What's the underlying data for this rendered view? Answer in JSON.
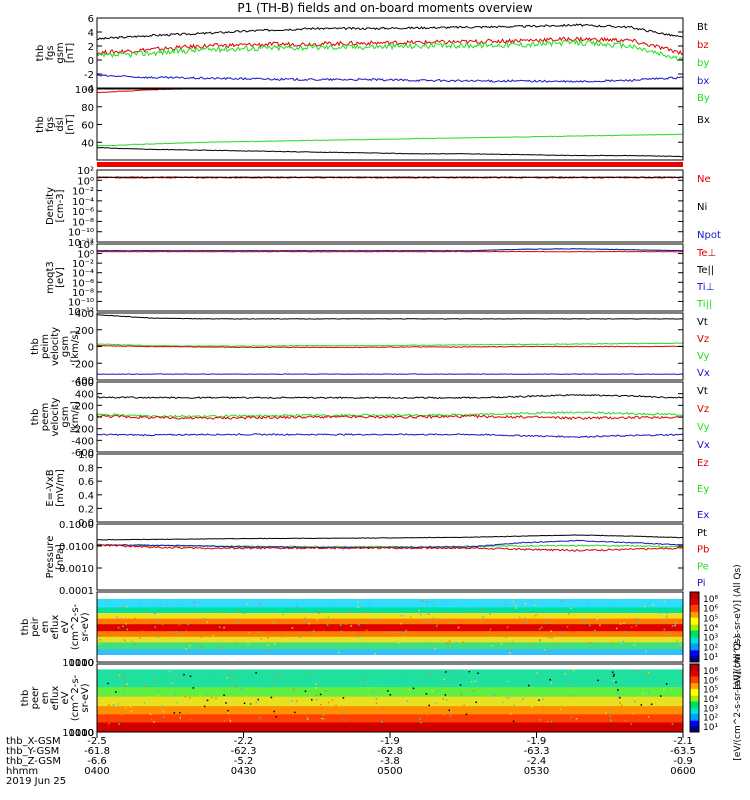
{
  "title": "P1  (TH-B) fields and on-board moments overview",
  "colors": {
    "black": "#000000",
    "red": "#e00000",
    "green": "#22dd22",
    "blue": "#1515c8",
    "frame": "#000000"
  },
  "chart_data": [
    {
      "type": "line",
      "panel": "fgs_gsm",
      "ylabel": [
        "thb",
        "fgs",
        "gsm",
        "[nT]"
      ],
      "ylim": [
        -4,
        6
      ],
      "yticks": [
        "6",
        "4",
        "2",
        "0",
        "-2",
        "-4"
      ],
      "ytick_values": [
        6,
        4,
        2,
        0,
        -2,
        -4
      ],
      "legend": [
        {
          "label": "Bt",
          "color": "#000000"
        },
        {
          "label": "bz",
          "color": "#e00000"
        },
        {
          "label": "by",
          "color": "#22dd22"
        },
        {
          "label": "bx",
          "color": "#1515c8"
        }
      ],
      "series": [
        {
          "name": "Bt",
          "color": "#000000",
          "base": [
            3.0,
            3.5,
            3.8,
            4.2,
            4.5,
            4.5,
            4.6,
            4.7,
            4.8,
            5.0,
            4.7,
            3.2
          ],
          "noise": 0.15
        },
        {
          "name": "bz",
          "color": "#e00000",
          "base": [
            1.0,
            1.5,
            2.0,
            2.2,
            2.3,
            2.4,
            2.5,
            2.6,
            2.8,
            3.0,
            2.8,
            1.0
          ],
          "noise": 0.3
        },
        {
          "name": "by",
          "color": "#22dd22",
          "base": [
            0.5,
            1.0,
            1.5,
            1.7,
            1.8,
            1.9,
            2.0,
            2.1,
            2.2,
            2.5,
            2.0,
            0.0
          ],
          "noise": 0.4
        },
        {
          "name": "bx",
          "color": "#1515c8",
          "base": [
            -2.2,
            -2.5,
            -2.6,
            -2.7,
            -2.8,
            -2.8,
            -2.9,
            -3.0,
            -3.0,
            -3.1,
            -2.9,
            -2.5
          ],
          "noise": 0.15
        }
      ]
    },
    {
      "type": "line",
      "panel": "fgs_dsl",
      "ylabel": [
        "thb",
        "fgs",
        "dsl",
        "[nT]"
      ],
      "ylim": [
        20,
        100
      ],
      "yticks": [
        "100",
        "80",
        "60",
        "40"
      ],
      "ytick_values": [
        100,
        80,
        60,
        40
      ],
      "legend": [
        {
          "label": "By",
          "color": "#22dd22"
        },
        {
          "label": "Bx",
          "color": "#000000"
        }
      ],
      "series": [
        {
          "name": "Bz",
          "color": "#e00000",
          "base": [
            96,
            99,
            101,
            102,
            103,
            103,
            104,
            104,
            104,
            105,
            105,
            105
          ],
          "noise": 0.4
        },
        {
          "name": "By",
          "color": "#22dd22",
          "base": [
            36,
            38,
            40,
            41,
            42,
            43,
            44,
            45,
            46,
            47,
            48,
            49
          ],
          "noise": 0.3
        },
        {
          "name": "Bx",
          "color": "#000000",
          "base": [
            34,
            32,
            31,
            30,
            29,
            28,
            27,
            27,
            26,
            25,
            25,
            24
          ],
          "noise": 0.3
        }
      ]
    },
    {
      "type": "line",
      "panel": "density",
      "ylabel": [
        "Density",
        "[cm-3]"
      ],
      "ylim": [
        -12,
        2
      ],
      "log": true,
      "yticks": [
        "10²",
        "10⁰",
        "10⁻²",
        "10⁻⁴",
        "10⁻⁶",
        "10⁻⁸",
        "10⁻¹⁰",
        "10⁻¹²"
      ],
      "ytick_values": [
        2,
        0,
        -2,
        -4,
        -6,
        -8,
        -10,
        -12
      ],
      "legend": [
        {
          "label": "Ne",
          "color": "#e00000"
        },
        {
          "label": "Ni",
          "color": "#000000"
        },
        {
          "label": "Npot",
          "color": "#1515c8"
        }
      ],
      "series": [
        {
          "name": "Ne",
          "color": "#e00000",
          "base": [
            0.5,
            0.5,
            0.5,
            0.5,
            0.5,
            0.5,
            0.5,
            0.5,
            0.5,
            0.5,
            0.5,
            0.5
          ],
          "noise": 0.08
        },
        {
          "name": "Ni",
          "color": "#000000",
          "base": [
            0.6,
            0.6,
            0.6,
            0.6,
            0.6,
            0.6,
            0.6,
            0.6,
            0.6,
            0.6,
            0.6,
            0.6
          ],
          "noise": 0.05
        }
      ]
    },
    {
      "type": "line",
      "panel": "temperature",
      "ylabel": [
        "moqt3",
        "[eV]"
      ],
      "ylim": [
        -12,
        2
      ],
      "log": true,
      "yticks": [
        "10²",
        "10⁰",
        "10⁻²",
        "10⁻⁴",
        "10⁻⁶",
        "10⁻⁸",
        "10⁻¹⁰",
        "10⁻¹²"
      ],
      "ytick_values": [
        2,
        0,
        -2,
        -4,
        -6,
        -8,
        -10,
        -12
      ],
      "legend": [
        {
          "label": "Te⊥",
          "color": "#e00000"
        },
        {
          "label": "Te||",
          "color": "#000000"
        },
        {
          "label": "Ti⊥",
          "color": "#1515c8"
        },
        {
          "label": "Ti||",
          "color": "#22dd22"
        }
      ],
      "series": [
        {
          "name": "Ti||",
          "color": "#22dd22",
          "base": [
            0.6,
            0.6,
            0.6,
            0.6,
            0.6,
            0.6,
            0.6,
            0.6,
            0.9,
            1.0,
            0.8,
            0.6
          ],
          "noise": 0.05
        },
        {
          "name": "Ti⊥",
          "color": "#1515c8",
          "base": [
            0.6,
            0.6,
            0.6,
            0.6,
            0.6,
            0.6,
            0.6,
            0.6,
            0.9,
            1.0,
            0.8,
            0.6
          ],
          "noise": 0.05
        },
        {
          "name": "Te⊥",
          "color": "#e00000",
          "base": [
            0.4,
            0.4,
            0.4,
            0.4,
            0.4,
            0.4,
            0.4,
            0.4,
            0.4,
            0.4,
            0.4,
            0.4
          ],
          "noise": 0.05
        }
      ]
    },
    {
      "type": "line",
      "panel": "ion_velocity",
      "ylabel": [
        "thb",
        "peim",
        "velocity",
        "gsm",
        "[km/s]"
      ],
      "ylim": [
        -400,
        400
      ],
      "yticks": [
        "400",
        "200",
        "0",
        "-200",
        "-400"
      ],
      "ytick_values": [
        400,
        200,
        0,
        -200,
        -400
      ],
      "legend": [
        {
          "label": "Vt",
          "color": "#000000"
        },
        {
          "label": "Vz",
          "color": "#e00000"
        },
        {
          "label": "Vy",
          "color": "#22dd22"
        },
        {
          "label": "Vx",
          "color": "#1515c8"
        }
      ],
      "series": [
        {
          "name": "Vt",
          "color": "#000000",
          "base": [
            380,
            340,
            330,
            330,
            330,
            330,
            330,
            330,
            330,
            330,
            330,
            330
          ],
          "noise": 3
        },
        {
          "name": "Vy",
          "color": "#22dd22",
          "base": [
            30,
            10,
            5,
            5,
            10,
            10,
            15,
            20,
            25,
            30,
            35,
            40
          ],
          "noise": 4
        },
        {
          "name": "Vz",
          "color": "#e00000",
          "base": [
            10,
            0,
            -5,
            -10,
            -10,
            -10,
            -5,
            -5,
            0,
            0,
            0,
            0
          ],
          "noise": 4
        },
        {
          "name": "Vx",
          "color": "#1515c8",
          "base": [
            -330,
            -330,
            -330,
            -330,
            -330,
            -330,
            -330,
            -330,
            -330,
            -330,
            -330,
            -330
          ],
          "noise": 3
        }
      ]
    },
    {
      "type": "line",
      "panel": "electron_velocity",
      "ylabel": [
        "thb",
        "peem",
        "velocity",
        "gsm",
        "[km/s]"
      ],
      "ylim": [
        -600,
        600
      ],
      "yticks": [
        "600",
        "400",
        "200",
        "0",
        "-200",
        "-400",
        "-600"
      ],
      "ytick_values": [
        600,
        400,
        200,
        0,
        -200,
        -400,
        -600
      ],
      "legend": [
        {
          "label": "Vt",
          "color": "#000000"
        },
        {
          "label": "Vz",
          "color": "#e00000"
        },
        {
          "label": "Vy",
          "color": "#22dd22"
        },
        {
          "label": "Vx",
          "color": "#1515c8"
        }
      ],
      "series": [
        {
          "name": "Vt",
          "color": "#000000",
          "base": [
            340,
            330,
            330,
            330,
            330,
            330,
            330,
            330,
            350,
            380,
            360,
            330
          ],
          "noise": 12
        },
        {
          "name": "Vy",
          "color": "#22dd22",
          "base": [
            40,
            20,
            10,
            20,
            30,
            30,
            30,
            40,
            60,
            80,
            60,
            40
          ],
          "noise": 18
        },
        {
          "name": "Vz",
          "color": "#e00000",
          "base": [
            20,
            -10,
            -20,
            -10,
            0,
            0,
            0,
            10,
            0,
            -20,
            -10,
            0
          ],
          "noise": 22
        },
        {
          "name": "Vx",
          "color": "#1515c8",
          "base": [
            -300,
            -310,
            -300,
            -300,
            -300,
            -300,
            -300,
            -300,
            -320,
            -340,
            -320,
            -300
          ],
          "noise": 12
        }
      ]
    },
    {
      "type": "line",
      "panel": "efield",
      "ylabel": [
        "E=-VxB",
        "[mV/m]"
      ],
      "ylim": [
        0,
        1
      ],
      "yticks": [
        "1.0",
        "0.8",
        "0.6",
        "0.4",
        "0.2",
        "0.0"
      ],
      "ytick_values": [
        1.0,
        0.8,
        0.6,
        0.4,
        0.2,
        0.0
      ],
      "legend": [
        {
          "label": "Ez",
          "color": "#e00000"
        },
        {
          "label": "Ey",
          "color": "#22dd22"
        },
        {
          "label": "Ex",
          "color": "#1515c8"
        }
      ],
      "series": []
    },
    {
      "type": "line",
      "panel": "pressure",
      "ylabel": [
        "Pressure",
        "[nPa]"
      ],
      "ylim": [
        -4,
        -1
      ],
      "log": true,
      "yticks": [
        "0.1000",
        "0.0100",
        "0.0010",
        "0.0001"
      ],
      "ytick_values": [
        -1,
        -2,
        -3,
        -4
      ],
      "legend": [
        {
          "label": "Pt",
          "color": "#000000"
        },
        {
          "label": "Pb",
          "color": "#e00000"
        },
        {
          "label": "Pe",
          "color": "#22dd22"
        },
        {
          "label": "Pi",
          "color": "#1515c8"
        }
      ],
      "series": [
        {
          "name": "Pt",
          "color": "#000000",
          "base": [
            -1.72,
            -1.7,
            -1.68,
            -1.66,
            -1.65,
            -1.64,
            -1.62,
            -1.6,
            -1.55,
            -1.5,
            -1.55,
            -1.62
          ],
          "noise": 0.01
        },
        {
          "name": "Pe",
          "color": "#22dd22",
          "base": [
            -1.95,
            -1.98,
            -2.0,
            -2.02,
            -2.03,
            -2.03,
            -2.04,
            -2.02,
            -2.0,
            -1.98,
            -2.0,
            -2.04
          ],
          "noise": 0.03
        },
        {
          "name": "Pi",
          "color": "#1515c8",
          "base": [
            -1.95,
            -1.96,
            -2.0,
            -2.05,
            -2.06,
            -2.06,
            -2.06,
            -2.04,
            -1.85,
            -1.75,
            -1.85,
            -1.95
          ],
          "noise": 0.02
        },
        {
          "name": "Pb",
          "color": "#e00000",
          "base": [
            -1.95,
            -2.05,
            -2.1,
            -2.1,
            -2.1,
            -2.1,
            -2.09,
            -2.09,
            -2.15,
            -2.2,
            -2.15,
            -2.1
          ],
          "noise": 0.04
        }
      ]
    },
    {
      "type": "heatmap",
      "panel": "ion_spectrogram",
      "ylabel": [
        "thb",
        "peir",
        "en",
        "eflux",
        "eV",
        "(cm^2-s-",
        "sr-eV)"
      ],
      "ylim": [
        5,
        10000
      ],
      "log": true,
      "yticks": [
        "10000",
        "1000",
        "100",
        "10"
      ],
      "ytick_values": [
        4,
        3,
        2,
        1
      ]
    },
    {
      "type": "heatmap",
      "panel": "electron_spectrogram",
      "ylabel": [
        "thb",
        "peer",
        "en",
        "eflux",
        "eV",
        "(cm^2-s-",
        "sr-eV)"
      ],
      "ylim": [
        5,
        10000
      ],
      "log": true,
      "yticks": [
        "10000",
        "1000",
        "100",
        "10"
      ],
      "ytick_values": [
        4,
        3,
        2,
        1
      ]
    }
  ],
  "colorbar": {
    "label": "[eV/(cm^2-s-sr-eV)] (All Qs)",
    "label2": "[eV/(cm^2-s-sr-eV)] (All Qs)",
    "ticks_top": [
      "10⁸",
      "10⁶",
      "10⁵",
      "10⁴",
      "10³",
      "10²",
      "10¹"
    ],
    "ticks_bottom": [
      "10⁸",
      "10⁶",
      "10⁵",
      "10⁴",
      "10³",
      "10²",
      "10¹"
    ]
  },
  "xaxis": {
    "row_labels": [
      "thb_X-GSM",
      "thb_Y-GSM",
      "thb_Z-GSM",
      "hhmm",
      "2019 Jun 25"
    ],
    "ticks": [
      {
        "x": "-2.5",
        "y": "-61.8",
        "z": "-6.6",
        "t": "0400"
      },
      {
        "x": "-2.2",
        "y": "-62.3",
        "z": "-5.2",
        "t": "0430"
      },
      {
        "x": "-1.9",
        "y": "-62.8",
        "z": "-3.8",
        "t": "0500"
      },
      {
        "x": "-1.9",
        "y": "-63.3",
        "z": "-2.4",
        "t": "0530"
      },
      {
        "x": "-2.1",
        "y": "-63.5",
        "z": "-0.9",
        "t": "0600"
      }
    ]
  }
}
